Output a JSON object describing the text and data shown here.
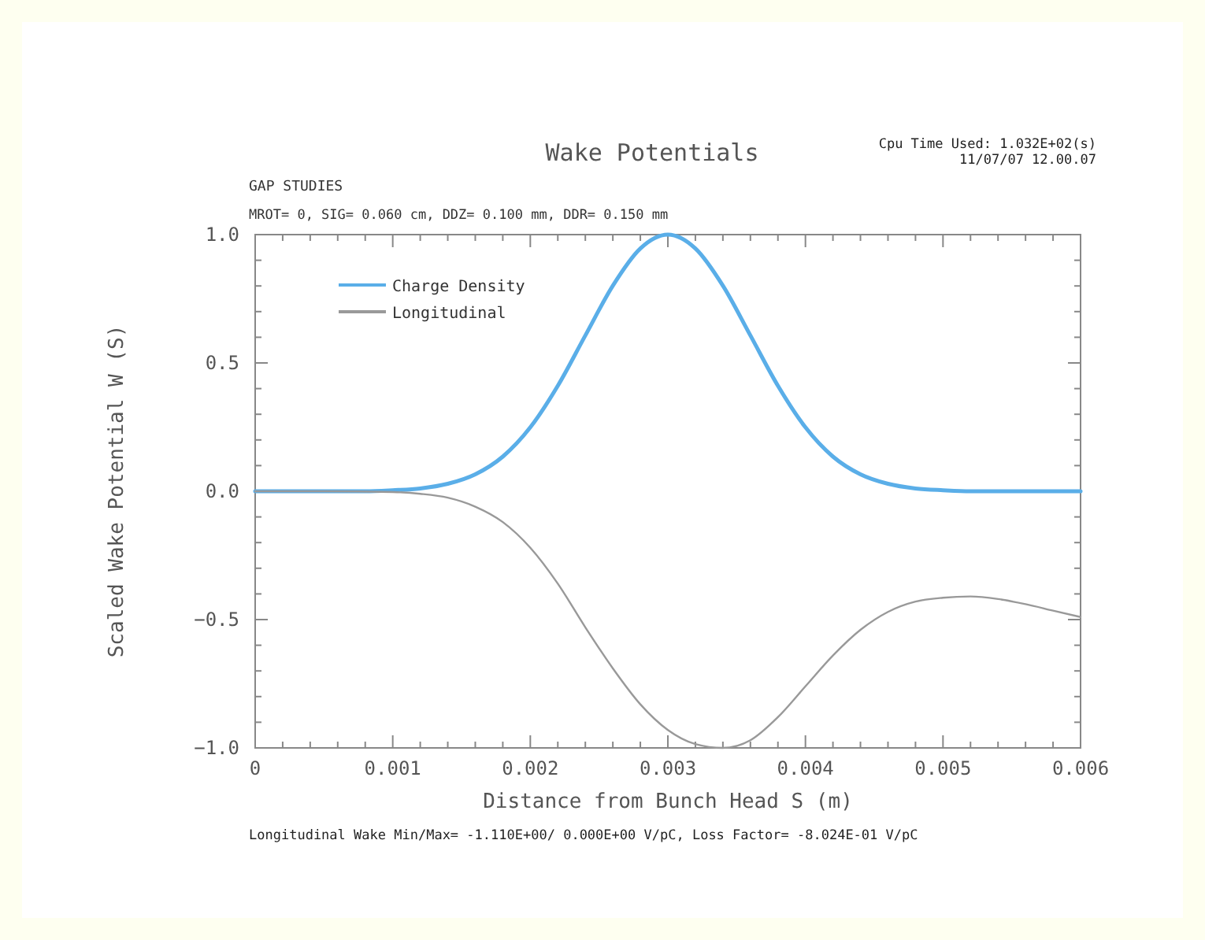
{
  "chart_data": {
    "type": "line",
    "title": "Wake Potentials",
    "subtitle": "GAP STUDIES",
    "xlabel": "Distance from Bunch Head S (m)",
    "ylabel": "Scaled Wake Potential W (S)",
    "annotations": [
      "Cpu Time Used: 1.032E+02(s)",
      "11/07/07  12.00.07",
      "MROT= 0,  SIG= 0.060 cm,  DDZ= 0.100 mm,  DDR= 0.150 mm",
      "Longitudinal Wake  Min/Max= -1.110E+00/ 0.000E+00 V/pC,      Loss Factor= -8.024E-01 V/pC"
    ],
    "xlim": [
      0,
      0.006
    ],
    "ylim": [
      -1,
      1
    ],
    "xticks": [
      0,
      {
        "value": 0.0002,
        "label": null
      },
      {
        "value": 0.0004,
        "label": null
      },
      {
        "value": 0.0006,
        "label": null
      },
      {
        "value": 0.0008,
        "label": null
      },
      0.001,
      {
        "value": 0.0012,
        "label": null
      },
      {
        "value": 0.0014,
        "label": null
      },
      {
        "value": 0.0016,
        "label": null
      },
      {
        "value": 0.0018,
        "label": null
      },
      0.002,
      {
        "value": 0.0022,
        "label": null
      },
      {
        "value": 0.0024,
        "label": null
      },
      {
        "value": 0.0026,
        "label": null
      },
      {
        "value": 0.0028,
        "label": null
      },
      0.003,
      {
        "value": 0.0032,
        "label": null
      },
      {
        "value": 0.0034,
        "label": null
      },
      {
        "value": 0.0036,
        "label": null
      },
      {
        "value": 0.0038,
        "label": null
      },
      0.004,
      {
        "value": 0.0042,
        "label": null
      },
      {
        "value": 0.0044,
        "label": null
      },
      {
        "value": 0.0046,
        "label": null
      },
      {
        "value": 0.0048,
        "label": null
      },
      0.005,
      {
        "value": 0.0052,
        "label": null
      },
      {
        "value": 0.0054,
        "label": null
      },
      {
        "value": 0.0056,
        "label": null
      },
      {
        "value": 0.0058,
        "label": null
      },
      0.006
    ],
    "yticks": [
      {
        "value": -1,
        "label": "−1.0"
      },
      {
        "value": -0.9,
        "label": null
      },
      {
        "value": -0.8,
        "label": null
      },
      {
        "value": -0.7,
        "label": null
      },
      {
        "value": -0.6,
        "label": null
      },
      {
        "value": -0.5,
        "label": "−0.5"
      },
      {
        "value": -0.4,
        "label": null
      },
      {
        "value": -0.3,
        "label": null
      },
      {
        "value": -0.2,
        "label": null
      },
      {
        "value": -0.1,
        "label": null
      },
      {
        "value": 0,
        "label": "0.0"
      },
      {
        "value": 0.1,
        "label": null
      },
      {
        "value": 0.2,
        "label": null
      },
      {
        "value": 0.3,
        "label": null
      },
      {
        "value": 0.4,
        "label": null
      },
      {
        "value": 0.5,
        "label": "0.5"
      },
      {
        "value": 0.6,
        "label": null
      },
      {
        "value": 0.7,
        "label": null
      },
      {
        "value": 0.8,
        "label": null
      },
      {
        "value": 0.9,
        "label": null
      },
      {
        "value": 1,
        "label": "1.0"
      }
    ],
    "legend": "top left",
    "grid": false,
    "series": [
      {
        "name": "Charge Density",
        "color": "#5aaee8",
        "line_style": "solid",
        "x": [
          0,
          0.0002,
          0.0004,
          0.0006,
          0.0008,
          0.001,
          0.0012,
          0.0014,
          0.0016,
          0.0018,
          0.002,
          0.0022,
          0.0024,
          0.0026,
          0.0028,
          0.003,
          0.0032,
          0.0034,
          0.0036,
          0.0038,
          0.004,
          0.0042,
          0.0044,
          0.0046,
          0.0048,
          0.005,
          0.0052,
          0.0054,
          0.0056,
          0.0058,
          0.006
        ],
        "values": [
          0,
          0,
          0,
          0,
          0,
          0.004,
          0.011,
          0.029,
          0.066,
          0.135,
          0.249,
          0.411,
          0.607,
          0.801,
          0.946,
          1,
          0.946,
          0.801,
          0.607,
          0.411,
          0.249,
          0.135,
          0.066,
          0.029,
          0.011,
          0.004,
          0,
          0,
          0,
          0,
          0
        ]
      },
      {
        "name": "Longitudinal",
        "color": "#999999",
        "line_style": "solid",
        "x": [
          0,
          0.0005,
          0.001,
          0.0012,
          0.0014,
          0.0016,
          0.0018,
          0.002,
          0.0022,
          0.0024,
          0.0026,
          0.0028,
          0.003,
          0.0032,
          0.0034,
          0.0036,
          0.0038,
          0.004,
          0.0042,
          0.0044,
          0.0046,
          0.0048,
          0.005,
          0.0052,
          0.0054,
          0.0056,
          0.0058,
          0.006
        ],
        "values": [
          0,
          0,
          -0.003,
          -0.01,
          -0.025,
          -0.06,
          -0.12,
          -0.22,
          -0.36,
          -0.53,
          -0.69,
          -0.83,
          -0.93,
          -0.985,
          -1,
          -0.97,
          -0.88,
          -0.76,
          -0.64,
          -0.54,
          -0.47,
          -0.43,
          -0.415,
          -0.41,
          -0.42,
          -0.44,
          -0.465,
          -0.49
        ]
      }
    ]
  }
}
